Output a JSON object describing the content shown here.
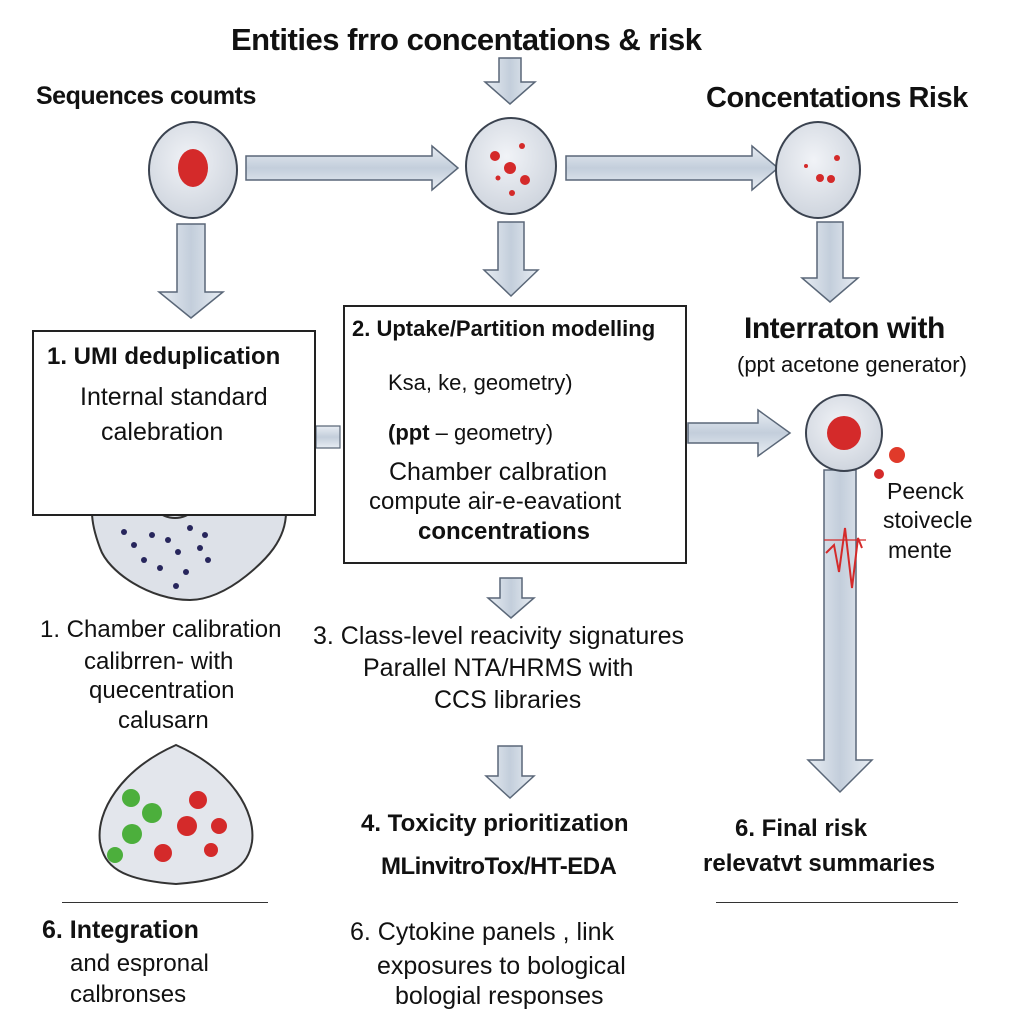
{
  "header": {
    "title": "Entities frro concentations & risk",
    "left_heading": "Sequences coumts",
    "right_heading": "Concentations Risk"
  },
  "box1": {
    "title": "1. UMI deduplication",
    "line1": "Internal standard",
    "line2": "calebration"
  },
  "box2": {
    "title": "2. Uptake/Partition modelling",
    "line1": "Ksa, ke, geometry)",
    "line2_bold": "(ppt",
    "line2_rest": " – geometry)",
    "line3": "Chamber calbration",
    "line4": "compute air-e-eavationt",
    "line5": "concentrations"
  },
  "right_block": {
    "title": "Interraton with",
    "subtitle": "(ppt acetone generator)",
    "label1": "Peenck",
    "label2": "stoivecle",
    "label3": "mente"
  },
  "left_mid": {
    "line1": "1. Chamber calibration",
    "line2": "calibrren- with",
    "line3": "quecentration",
    "line4": "calusarn"
  },
  "center_mid": {
    "line1": "3. Class-level reacivity signatures",
    "line2": "Parallel NTA/HRMS with",
    "line3": "CCS libraries"
  },
  "center_low": {
    "title": "4. Toxicity prioritization",
    "subtitle": "MLinvitroTox/HT-EDA"
  },
  "right_low": {
    "line1": "6. Final risk",
    "line2": "relevatvt summaries"
  },
  "left_bottom": {
    "title": "6. Integration",
    "line1": "and espronal",
    "line2": "calbronses"
  },
  "center_bottom": {
    "line1": "6. Cytokine panels , link",
    "line2": "exposures to bological",
    "line3": "bologial responses"
  },
  "colors": {
    "arrow_fill": "#c9d3df",
    "arrow_stroke": "#5a6778",
    "cell_fill": "#dfe3ea",
    "red": "#d42a2a",
    "green": "#4caf3c",
    "navy": "#27265c"
  }
}
